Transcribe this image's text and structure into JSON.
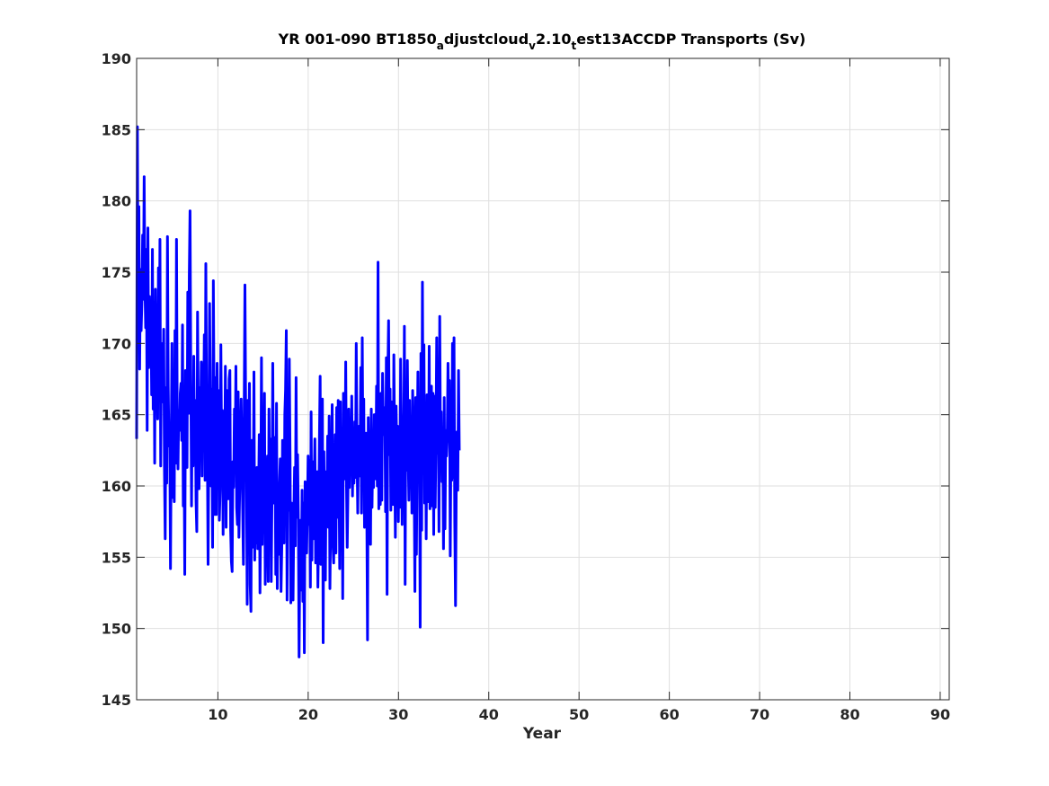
{
  "chart_data": {
    "type": "line",
    "title": {
      "parts": [
        {
          "text": "YR 001-090 BT1850",
          "sub": false
        },
        {
          "text": "a",
          "sub": true
        },
        {
          "text": "djustcloud",
          "sub": false
        },
        {
          "text": "v",
          "sub": true
        },
        {
          "text": "2.10",
          "sub": false
        },
        {
          "text": "t",
          "sub": true
        },
        {
          "text": "est13ACCDP Transports (Sv)",
          "sub": false
        }
      ]
    },
    "xlabel": "Year",
    "ylabel": "",
    "xlim": [
      1,
      91
    ],
    "ylim": [
      145,
      190
    ],
    "xticks": [
      10,
      20,
      30,
      40,
      50,
      60,
      70,
      80,
      90
    ],
    "yticks": [
      145,
      150,
      155,
      160,
      165,
      170,
      175,
      180,
      185,
      190
    ],
    "grid": true,
    "series": [
      {
        "color": "#0000ff",
        "x_start": 1.0,
        "x_step": 0.0833,
        "values": [
          163.3,
          185.2,
          171.4,
          179.6,
          168.2,
          175.2,
          170.9,
          172.9,
          177.6,
          173.1,
          181.7,
          174.1,
          171.1,
          176.6,
          163.9,
          178.1,
          168.3,
          173.3,
          170.5,
          171.9,
          166.4,
          176.6,
          165.4,
          172.9,
          161.6,
          173.8,
          167.4,
          168.9,
          164.7,
          175.3,
          167.2,
          177.3,
          161.4,
          170.0,
          166.4,
          165.9,
          171.0,
          161.2,
          156.3,
          166.9,
          160.2,
          177.5,
          167.0,
          162.8,
          163.6,
          154.2,
          163.2,
          170.0,
          159.2,
          166.2,
          158.9,
          170.9,
          161.6,
          177.3,
          164.5,
          161.2,
          165.3,
          163.9,
          166.5,
          167.2,
          163.2,
          171.3,
          158.6,
          162.8,
          153.8,
          168.1,
          165.2,
          161.3,
          173.6,
          165.1,
          174.7,
          179.3,
          168.1,
          158.6,
          166.8,
          161.4,
          169.1,
          162.5,
          166.0,
          158.9,
          156.8,
          172.2,
          165.0,
          159.8,
          166.9,
          164.3,
          168.7,
          160.7,
          168.5,
          164.6,
          170.6,
          160.4,
          175.6,
          165.3,
          162.9,
          154.5,
          163.1,
          172.8,
          166.0,
          160.0,
          166.8,
          155.7,
          174.4,
          165.7,
          158.0,
          167.6,
          158.0,
          168.6,
          162.9,
          166.7,
          157.6,
          159.7,
          169.9,
          162.6,
          165.3,
          156.6,
          165.1,
          160.3,
          168.4,
          157.1,
          166.7,
          160.5,
          159.1,
          167.5,
          168.1,
          156.9,
          154.7,
          154.0,
          161.7,
          159.9,
          165.4,
          162.1,
          168.4,
          158.5,
          157.3,
          166.6,
          156.4,
          159.6,
          163.1,
          166.1,
          162.3,
          158.4,
          154.5,
          165.4,
          174.1,
          165.3,
          161.5,
          151.7,
          166.0,
          160.4,
          167.2,
          153.1,
          151.2,
          163.2,
          155.7,
          158.4,
          168.0,
          154.8,
          160.9,
          156.0,
          161.3,
          155.6,
          158.5,
          163.6,
          152.5,
          158.7,
          169.0,
          155.9,
          161.5,
          160.2,
          166.5,
          153.1,
          157.6,
          159.8,
          162.1,
          153.3,
          165.4,
          157.9,
          163.3,
          153.3,
          159.5,
          168.6,
          158.8,
          160.3,
          163.4,
          153.8,
          165.8,
          152.8,
          159.4,
          155.2,
          160.2,
          161.9,
          152.6,
          155.7,
          163.2,
          160.7,
          156.0,
          165.0,
          166.7,
          170.9,
          152.0,
          161.5,
          158.3,
          168.9,
          162.1,
          151.8,
          158.8,
          153.4,
          152.0,
          157.9,
          161.3,
          155.8,
          167.6,
          157.8,
          162.2,
          158.0,
          148.0,
          154.9,
          157.6,
          152.7,
          159.7,
          151.9,
          158.8,
          148.3,
          160.3,
          156.9,
          155.3,
          158.0,
          162.1,
          157.3,
          161.8,
          152.9,
          165.2,
          154.8,
          161.7,
          156.3,
          159.8,
          163.3,
          154.6,
          157.9,
          161.0,
          152.9,
          156.9,
          163.1,
          167.7,
          154.5,
          159.6,
          166.1,
          149.0,
          162.4,
          156.0,
          153.4,
          161.0,
          158.5,
          163.5,
          157.1,
          164.9,
          152.8,
          157.8,
          160.2,
          165.7,
          155.9,
          154.6,
          159.8,
          163.6,
          155.3,
          165.5,
          157.8,
          166.0,
          161.1,
          154.2,
          165.9,
          158.2,
          163.7,
          152.1,
          166.5,
          164.0,
          160.5,
          168.7,
          160.3,
          155.7,
          159.7,
          165.4,
          159.9,
          163.9,
          161.0,
          166.3,
          159.3,
          163.6,
          160.2,
          164.5,
          160.6,
          170.0,
          162.5,
          158.1,
          163.7,
          164.2,
          160.7,
          168.3,
          158.1,
          170.4,
          161.1,
          166.1,
          157.1,
          161.9,
          163.7,
          158.8,
          149.2,
          164.8,
          161.1,
          162.7,
          155.9,
          165.4,
          158.5,
          163.1,
          159.9,
          165.0,
          161.4,
          160.5,
          167.0,
          160.0,
          175.7,
          158.4,
          164.1,
          158.7,
          166.5,
          159.0,
          167.9,
          164.6,
          163.6,
          165.5,
          158.2,
          169.0,
          152.4,
          167.7,
          171.6,
          162.2,
          166.8,
          158.3,
          165.9,
          161.7,
          158.7,
          169.2,
          163.0,
          156.4,
          165.6,
          161.9,
          164.2,
          157.5,
          163.9,
          158.5,
          168.9,
          164.2,
          157.3,
          164.7,
          160.0,
          171.2,
          153.1,
          166.8,
          161.1,
          168.8,
          162.4,
          159.0,
          166.0,
          160.7,
          164.4,
          158.1,
          166.7,
          163.6,
          160.3,
          152.6,
          166.2,
          155.2,
          162.6,
          168.0,
          161.1,
          163.8,
          150.1,
          169.3,
          156.9,
          174.3,
          161.9,
          169.9,
          158.8,
          164.8,
          156.3,
          166.4,
          163.8,
          158.9,
          169.8,
          158.4,
          163.1,
          167.0,
          158.6,
          166.5,
          156.6,
          166.3,
          158.5,
          163.4,
          170.4,
          162.3,
          166.1,
          156.8,
          171.9,
          162.6,
          165.2,
          160.3,
          163.6,
          155.6,
          166.2,
          157.0,
          163.9,
          162.1,
          163.4,
          168.6,
          164.0,
          167.4,
          155.1,
          163.8,
          160.4,
          170.0,
          160.6,
          170.4,
          157.4,
          151.6,
          160.2,
          163.8,
          159.7,
          168.1,
          162.5
        ]
      }
    ]
  }
}
